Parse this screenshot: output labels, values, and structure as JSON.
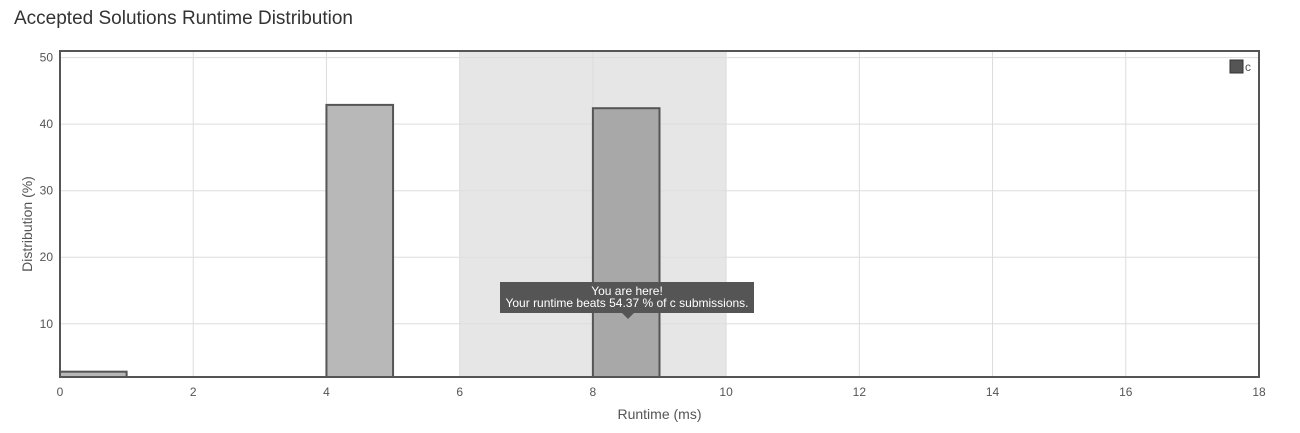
{
  "page": {
    "title": "Accepted Solutions Runtime Distribution"
  },
  "chart_data": {
    "type": "bar",
    "xlabel": "Runtime (ms)",
    "ylabel": "Distribution (%)",
    "xlim": [
      0,
      18
    ],
    "ylim": [
      2,
      51
    ],
    "x_ticks": [
      0,
      2,
      4,
      6,
      8,
      10,
      12,
      14,
      16,
      18
    ],
    "y_ticks": [
      10,
      20,
      30,
      40,
      50
    ],
    "grid": true,
    "legend_position": "top-right",
    "series": [
      {
        "name": "c",
        "color": "#555555",
        "bars": [
          {
            "x_start": 0,
            "x_end": 1,
            "value": 2.8
          },
          {
            "x_start": 4,
            "x_end": 5,
            "value": 42.9
          },
          {
            "x_start": 8,
            "x_end": 9,
            "value": 42.4,
            "highlighted": true
          }
        ]
      }
    ],
    "highlight_band": {
      "x_start": 6,
      "x_end": 10
    },
    "tooltip": {
      "line1": "You are here!",
      "line2": "Your runtime beats 54.37 % of c submissions."
    },
    "colors": {
      "bar_fill": "#b8b8b8",
      "bar_fill_highlight": "#a8a8a8",
      "bar_stroke": "#555555",
      "band_fill": "#e6e6e6",
      "grid": "#dddddd",
      "frame": "#555555",
      "tooltip_bg": "#555555"
    }
  }
}
